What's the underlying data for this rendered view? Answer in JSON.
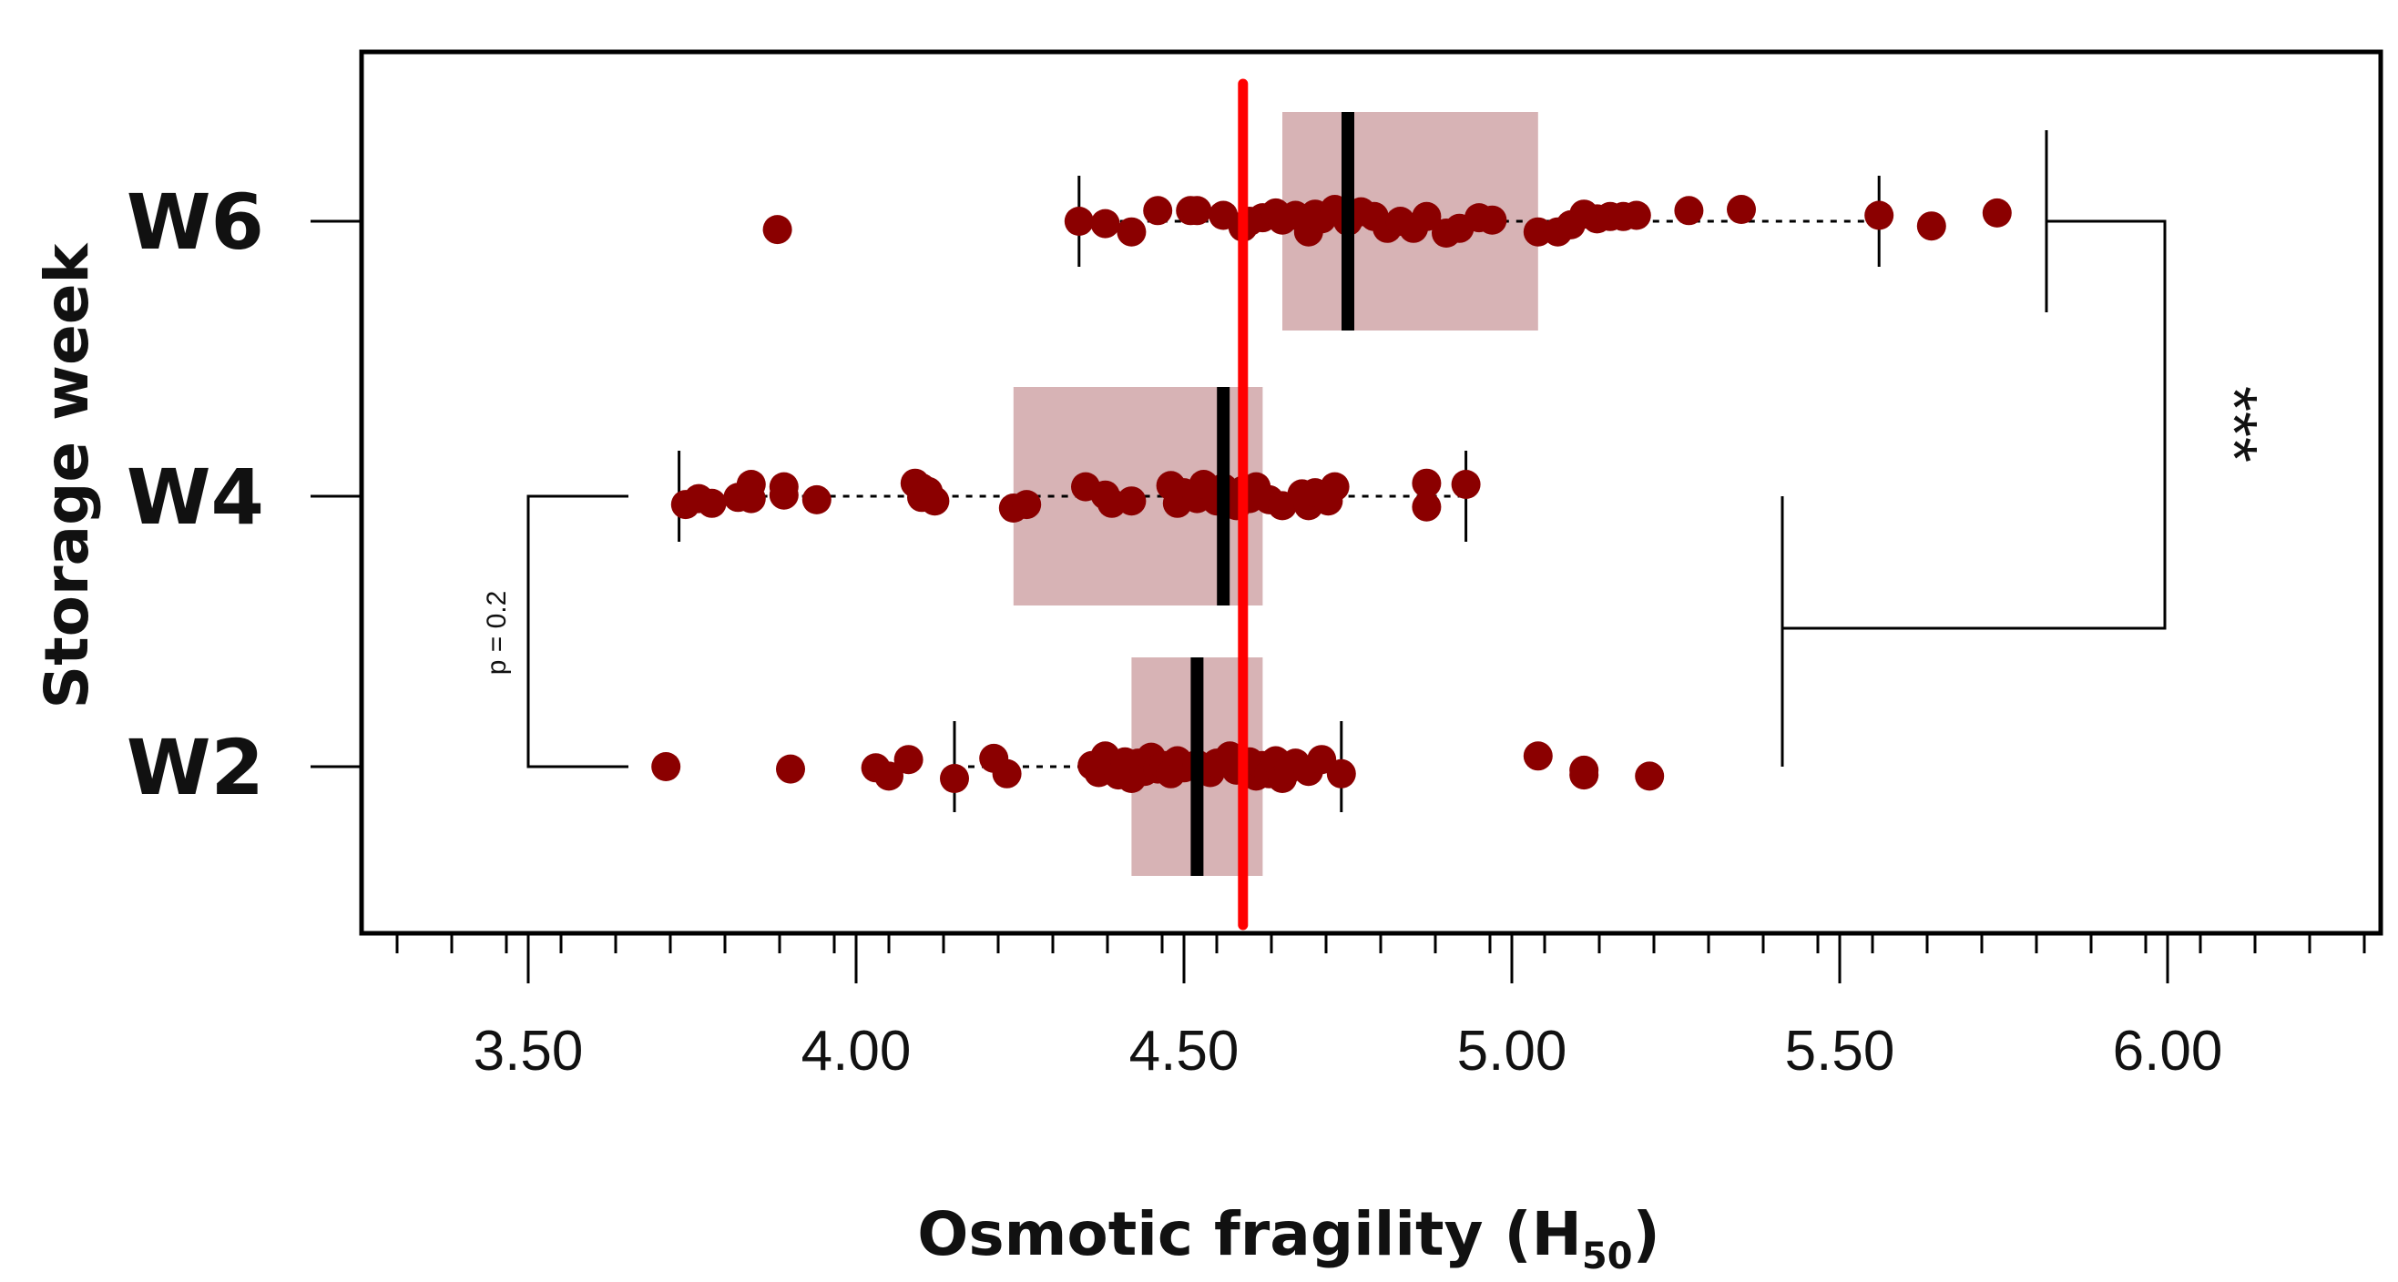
{
  "chart_data": {
    "type": "boxplot-strip",
    "orientation": "horizontal",
    "xlabel": "Osmotic fragility (H",
    "xlabel_sub": "50",
    "xlabel_close": ")",
    "ylabel": "Storage week",
    "xlim": [
      3.3,
      6.3
    ],
    "x_ticks": [
      3.5,
      4.0,
      4.5,
      5.0,
      5.5,
      6.0
    ],
    "x_tick_labels": [
      "3.50",
      "4.00",
      "4.50",
      "5.00",
      "5.50",
      "6.00"
    ],
    "minor_tick_step": 0.083333,
    "categories": [
      "W2",
      "W4",
      "W6"
    ],
    "reference_line": {
      "x": 4.59,
      "color": "#ff0000"
    },
    "colors": {
      "point": "#8b0000",
      "box": "#d7b3b5",
      "median": "#000000",
      "frame": "#000000"
    },
    "boxes": [
      {
        "name": "W2",
        "whisker_low": 4.15,
        "q1": 4.42,
        "median": 4.52,
        "q3": 4.62,
        "whisker_high": 4.74
      },
      {
        "name": "W4",
        "whisker_low": 3.73,
        "q1": 4.24,
        "median": 4.56,
        "q3": 4.62,
        "whisker_high": 4.93
      },
      {
        "name": "W6",
        "whisker_low": 4.34,
        "q1": 4.65,
        "median": 4.75,
        "q3": 5.04,
        "whisker_high": 5.56
      }
    ],
    "series": [
      {
        "name": "W2",
        "points": [
          [
            3.71,
            0.0
          ],
          [
            3.9,
            -0.02
          ],
          [
            4.03,
            -0.01
          ],
          [
            4.05,
            -0.08
          ],
          [
            4.08,
            0.06
          ],
          [
            4.15,
            -0.1
          ],
          [
            4.21,
            0.07
          ],
          [
            4.23,
            -0.06
          ],
          [
            4.36,
            0.01
          ],
          [
            4.37,
            -0.05
          ],
          [
            4.38,
            0.09
          ],
          [
            4.39,
            0.02
          ],
          [
            4.4,
            -0.07
          ],
          [
            4.41,
            0.04
          ],
          [
            4.42,
            -0.1
          ],
          [
            4.43,
            0.03
          ],
          [
            4.44,
            -0.04
          ],
          [
            4.45,
            0.08
          ],
          [
            4.46,
            -0.02
          ],
          [
            4.47,
            0.01
          ],
          [
            4.48,
            -0.06
          ],
          [
            4.49,
            0.05
          ],
          [
            4.5,
            -0.01
          ],
          [
            4.52,
            0.02
          ],
          [
            4.54,
            -0.05
          ],
          [
            4.55,
            0.03
          ],
          [
            4.57,
            0.09
          ],
          [
            4.58,
            -0.03
          ],
          [
            4.6,
            0.04
          ],
          [
            4.61,
            -0.08
          ],
          [
            4.62,
            0.01
          ],
          [
            4.63,
            -0.06
          ],
          [
            4.64,
            0.05
          ],
          [
            4.65,
            -0.1
          ],
          [
            4.66,
            -0.02
          ],
          [
            4.67,
            0.03
          ],
          [
            4.69,
            -0.04
          ],
          [
            4.71,
            0.06
          ],
          [
            4.74,
            -0.06
          ],
          [
            5.04,
            0.09
          ],
          [
            5.11,
            -0.03
          ],
          [
            5.11,
            -0.07
          ],
          [
            5.21,
            -0.08
          ]
        ]
      },
      {
        "name": "W4",
        "points": [
          [
            3.74,
            -0.07
          ],
          [
            3.76,
            -0.02
          ],
          [
            3.78,
            -0.06
          ],
          [
            3.82,
            -0.01
          ],
          [
            3.84,
            0.1
          ],
          [
            3.84,
            -0.02
          ],
          [
            3.89,
            0.08
          ],
          [
            3.89,
            0.01
          ],
          [
            3.94,
            -0.03
          ],
          [
            4.09,
            0.11
          ],
          [
            4.1,
            0.07
          ],
          [
            4.1,
            -0.01
          ],
          [
            4.11,
            0.04
          ],
          [
            4.12,
            -0.04
          ],
          [
            4.24,
            -0.1
          ],
          [
            4.26,
            -0.07
          ],
          [
            4.35,
            0.08
          ],
          [
            4.38,
            0.01
          ],
          [
            4.39,
            -0.06
          ],
          [
            4.42,
            -0.04
          ],
          [
            4.48,
            0.09
          ],
          [
            4.49,
            -0.06
          ],
          [
            4.5,
            0.03
          ],
          [
            4.52,
            -0.02
          ],
          [
            4.53,
            0.1
          ],
          [
            4.55,
            -0.04
          ],
          [
            4.56,
            0.07
          ],
          [
            4.57,
            0.0
          ],
          [
            4.58,
            -0.08
          ],
          [
            4.59,
            0.05
          ],
          [
            4.6,
            -0.02
          ],
          [
            4.61,
            0.08
          ],
          [
            4.63,
            -0.03
          ],
          [
            4.65,
            -0.08
          ],
          [
            4.68,
            0.02
          ],
          [
            4.69,
            -0.08
          ],
          [
            4.7,
            0.03
          ],
          [
            4.72,
            -0.04
          ],
          [
            4.73,
            0.08
          ],
          [
            4.87,
            0.11
          ],
          [
            4.87,
            -0.09
          ],
          [
            4.93,
            0.1
          ]
        ]
      },
      {
        "name": "W6",
        "points": [
          [
            3.88,
            -0.07
          ],
          [
            4.34,
            0.0
          ],
          [
            4.38,
            -0.02
          ],
          [
            4.42,
            -0.09
          ],
          [
            4.46,
            0.09
          ],
          [
            4.51,
            0.09
          ],
          [
            4.52,
            0.09
          ],
          [
            4.56,
            0.05
          ],
          [
            4.59,
            -0.05
          ],
          [
            4.6,
            0.0
          ],
          [
            4.62,
            0.03
          ],
          [
            4.64,
            0.07
          ],
          [
            4.65,
            0.01
          ],
          [
            4.67,
            0.05
          ],
          [
            4.69,
            -0.09
          ],
          [
            4.7,
            0.06
          ],
          [
            4.71,
            0.02
          ],
          [
            4.73,
            0.1
          ],
          [
            4.75,
            0.0
          ],
          [
            4.77,
            0.08
          ],
          [
            4.79,
            0.04
          ],
          [
            4.81,
            -0.06
          ],
          [
            4.83,
            0.0
          ],
          [
            4.85,
            -0.06
          ],
          [
            4.87,
            0.04
          ],
          [
            4.9,
            -0.1
          ],
          [
            4.92,
            -0.06
          ],
          [
            4.95,
            0.03
          ],
          [
            4.97,
            0.01
          ],
          [
            5.04,
            -0.09
          ],
          [
            5.07,
            -0.09
          ],
          [
            5.09,
            -0.03
          ],
          [
            5.11,
            0.06
          ],
          [
            5.13,
            0.02
          ],
          [
            5.15,
            0.04
          ],
          [
            5.17,
            0.04
          ],
          [
            5.19,
            0.05
          ],
          [
            5.27,
            0.09
          ],
          [
            5.35,
            0.1
          ],
          [
            5.56,
            0.05
          ],
          [
            5.64,
            -0.04
          ],
          [
            5.74,
            0.07
          ]
        ]
      }
    ],
    "annotations": [
      {
        "text": "p = 0.2",
        "between": [
          "W2",
          "W4"
        ],
        "side": "left"
      },
      {
        "text": "***",
        "between": [
          "W2-W4",
          "W6"
        ],
        "side": "right"
      }
    ]
  }
}
